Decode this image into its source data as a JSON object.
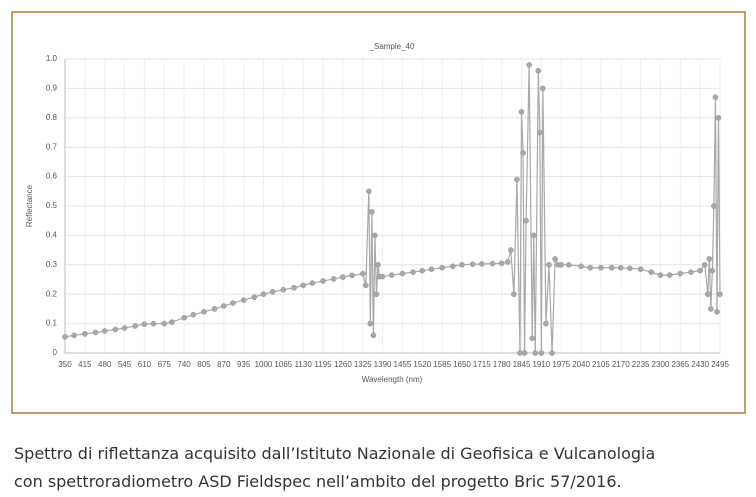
{
  "chart_data": {
    "type": "scatter-line",
    "title": "_Sample_40",
    "y_label": "Reflectance",
    "x_label": "Wavelength (nm)",
    "xlim": [
      350,
      2495
    ],
    "xticks": [
      350,
      415,
      480,
      545,
      610,
      675,
      740,
      805,
      870,
      935,
      1000,
      1065,
      1130,
      1195,
      1260,
      1325,
      1390,
      1455,
      1520,
      1585,
      1650,
      1715,
      1780,
      1845,
      1910,
      1975,
      2040,
      2105,
      2170,
      2235,
      2300,
      2365,
      2430,
      2495
    ],
    "ylim": [
      0,
      1
    ],
    "yticks": [
      0,
      0.1,
      0.2,
      0.3,
      0.4,
      0.5,
      0.6,
      0.7,
      0.8,
      0.9,
      {
        "value": 1,
        "label": "1.0"
      }
    ],
    "grid": true,
    "series": [
      {
        "color": "#a8a8a8",
        "x": [
          350,
          380,
          415,
          450,
          480,
          515,
          545,
          580,
          610,
          640,
          675,
          700,
          740,
          770,
          805,
          840,
          870,
          900,
          935,
          970,
          1000,
          1030,
          1065,
          1100,
          1130,
          1160,
          1195,
          1230,
          1260,
          1290,
          1325,
          1335,
          1345,
          1350,
          1355,
          1360,
          1365,
          1370,
          1375,
          1380,
          1390,
          1420,
          1455,
          1490,
          1520,
          1550,
          1585,
          1620,
          1650,
          1685,
          1715,
          1750,
          1780,
          1800,
          1810,
          1820,
          1830,
          1840,
          1845,
          1850,
          1855,
          1860,
          1870,
          1880,
          1885,
          1890,
          1900,
          1905,
          1910,
          1915,
          1925,
          1935,
          1945,
          1955,
          1965,
          1975,
          2000,
          2040,
          2070,
          2105,
          2140,
          2170,
          2200,
          2235,
          2270,
          2300,
          2330,
          2365,
          2400,
          2430,
          2445,
          2455,
          2460,
          2465,
          2470,
          2475,
          2480,
          2485,
          2490,
          2495
        ],
        "values": [
          0.055,
          0.06,
          0.065,
          0.07,
          0.075,
          0.08,
          0.085,
          0.092,
          0.098,
          0.1,
          0.1,
          0.105,
          0.12,
          0.13,
          0.14,
          0.15,
          0.16,
          0.17,
          0.18,
          0.19,
          0.2,
          0.208,
          0.215,
          0.222,
          0.23,
          0.238,
          0.245,
          0.252,
          0.258,
          0.264,
          0.27,
          0.23,
          0.55,
          0.1,
          0.48,
          0.06,
          0.4,
          0.2,
          0.3,
          0.26,
          0.26,
          0.265,
          0.27,
          0.275,
          0.28,
          0.285,
          0.29,
          0.295,
          0.3,
          0.302,
          0.303,
          0.304,
          0.305,
          0.31,
          0.35,
          0.2,
          0.59,
          0,
          0.82,
          0.68,
          0,
          0.45,
          0.98,
          0.05,
          0.4,
          0,
          0.96,
          0.75,
          0,
          0.9,
          0.1,
          0.3,
          0,
          0.32,
          0.3,
          0.3,
          0.3,
          0.295,
          0.29,
          0.29,
          0.29,
          0.29,
          0.288,
          0.285,
          0.275,
          0.265,
          0.265,
          0.27,
          0.275,
          0.28,
          0.3,
          0.2,
          0.32,
          0.15,
          0.28,
          0.5,
          0.87,
          0.14,
          0.8,
          0.2
        ]
      }
    ]
  },
  "caption": [
    "Spettro di riflettanza acquisito dall’Istituto Nazionale di Geofisica e Vulcanologia",
    "con spettroradiometro ASD Fieldspec nell’ambito del progetto Bric 57/2016."
  ]
}
